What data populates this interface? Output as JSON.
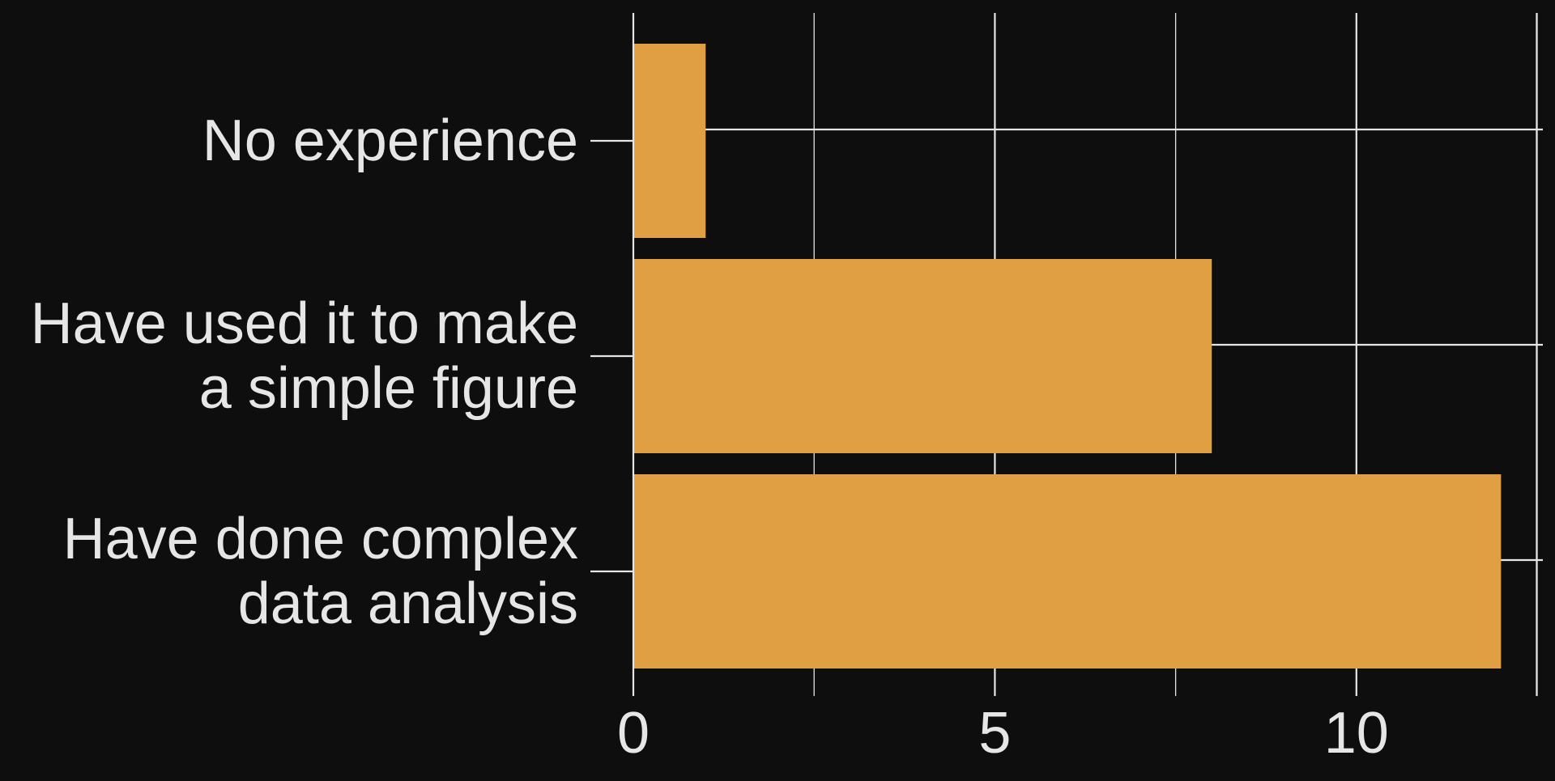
{
  "chart_data": {
    "type": "bar",
    "orientation": "horizontal",
    "categories": [
      [
        "No experience"
      ],
      [
        "Have used it to make",
        "a simple figure"
      ],
      [
        "Have done complex",
        "data analysis"
      ]
    ],
    "values": [
      1,
      8,
      12
    ],
    "x_ticks": [
      0,
      5,
      10
    ],
    "xlim": [
      0,
      12.5
    ],
    "title": "",
    "xlabel": "",
    "ylabel": "",
    "grid": true,
    "legend": "none"
  },
  "colors": {
    "background": "#0e0e0e",
    "bar": "#e09f42",
    "grid": "#e6e6e6",
    "text": "#e6e6e6"
  }
}
